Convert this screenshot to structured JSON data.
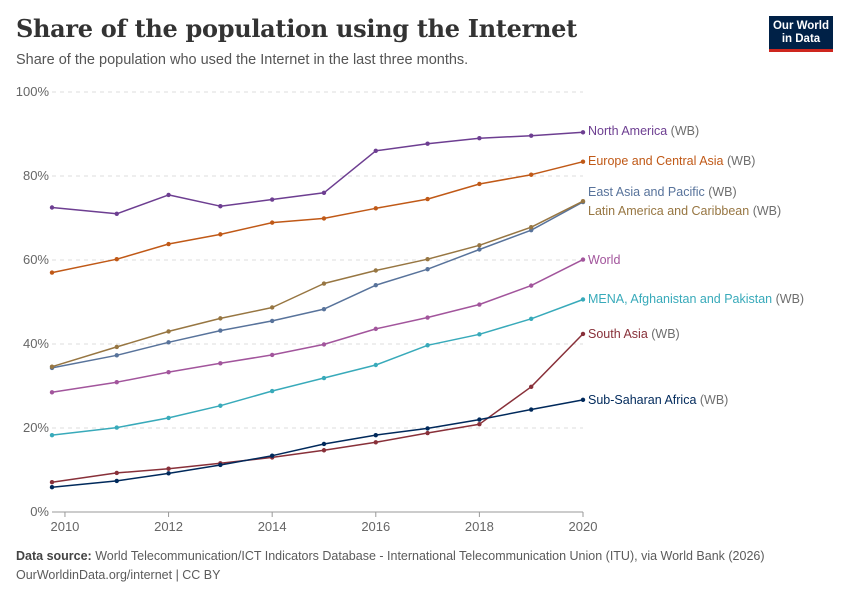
{
  "header": {
    "title": "Share of the population using the Internet",
    "subtitle": "Share of the population who used the Internet in the last three months."
  },
  "logo": {
    "line1": "Our World",
    "line2": "in Data",
    "bg": "#002147",
    "accent": "#ce261e"
  },
  "footer": {
    "source_label": "Data source:",
    "source_text": "World Telecommunication/ICT Indicators Database - International Telecommunication Union (ITU), via World Bank (2026)",
    "credit": "OurWorldinData.org/internet | CC BY"
  },
  "chart_data": {
    "type": "line",
    "title": "Share of the population using the Internet",
    "x": [
      2009.75,
      2011,
      2012,
      2013,
      2014,
      2015,
      2016,
      2017,
      2018,
      2019,
      2020
    ],
    "xticks": [
      2010,
      2012,
      2014,
      2016,
      2018,
      2020
    ],
    "xlim": [
      2009.75,
      2020
    ],
    "yticks": [
      0,
      20,
      40,
      60,
      80,
      100
    ],
    "ytick_labels": [
      "0%",
      "20%",
      "40%",
      "60%",
      "80%",
      "100%"
    ],
    "ylim": [
      0,
      100
    ],
    "grid": "horizontal dashed",
    "legend": "inline labels at line ends (right)",
    "series": [
      {
        "name": "North America",
        "suffix": "(WB)",
        "color": "#6d3e91",
        "values": [
          72.5,
          71,
          75.5,
          72.8,
          74.4,
          76,
          86,
          87.7,
          89,
          89.6,
          90.4
        ]
      },
      {
        "name": "Europe and Central Asia",
        "suffix": "(WB)",
        "color": "#c05917",
        "values": [
          57,
          60.2,
          63.8,
          66.1,
          68.9,
          69.9,
          72.3,
          74.5,
          78.1,
          80.3,
          83.4
        ]
      },
      {
        "name": "East Asia and Pacific",
        "suffix": "(WB)",
        "color": "#58739b",
        "values": [
          34.3,
          37.3,
          40.4,
          43.2,
          45.5,
          48.3,
          54,
          57.8,
          62.5,
          67.1,
          73.8
        ]
      },
      {
        "name": "Latin America and Caribbean",
        "suffix": "(WB)",
        "color": "#977642",
        "values": [
          34.6,
          39.3,
          43,
          46.1,
          48.7,
          54.4,
          57.5,
          60.2,
          63.5,
          67.8,
          74
        ]
      },
      {
        "name": "World",
        "suffix": "",
        "color": "#a2559c",
        "values": [
          28.5,
          30.9,
          33.3,
          35.4,
          37.4,
          39.9,
          43.6,
          46.3,
          49.4,
          53.9,
          60.1
        ]
      },
      {
        "name": "MENA, Afghanistan and Pakistan",
        "suffix": "(WB)",
        "color": "#38aaba",
        "values": [
          18.3,
          20.1,
          22.4,
          25.3,
          28.8,
          31.9,
          35,
          39.7,
          42.3,
          46,
          50.6
        ]
      },
      {
        "name": "South Asia",
        "suffix": "(WB)",
        "color": "#883039",
        "values": [
          7.1,
          9.3,
          10.3,
          11.6,
          13,
          14.7,
          16.6,
          18.8,
          20.9,
          29.8,
          42.4
        ]
      },
      {
        "name": "Sub-Saharan Africa",
        "suffix": "(WB)",
        "color": "#00295b",
        "values": [
          5.9,
          7.4,
          9.2,
          11.2,
          13.4,
          16.2,
          18.3,
          19.9,
          22,
          24.4,
          26.7
        ]
      }
    ]
  }
}
